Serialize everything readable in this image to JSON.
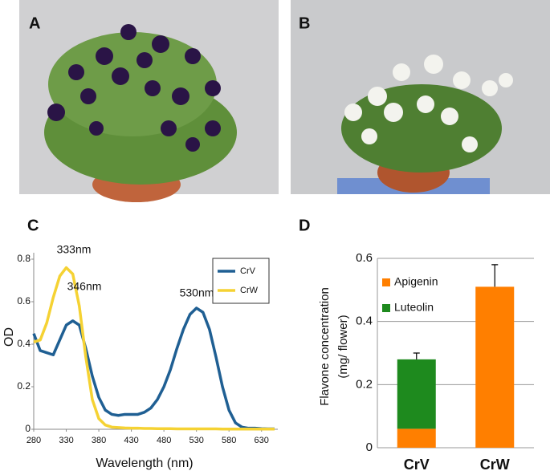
{
  "panel_labels": [
    "A",
    "B",
    "C",
    "D"
  ],
  "chart_data": [
    {
      "type": "line",
      "xlabel": "Wavelength (nm)",
      "ylabel": "OD",
      "x": [
        280,
        290,
        300,
        310,
        320,
        330,
        340,
        350,
        360,
        370,
        380,
        390,
        400,
        410,
        420,
        430,
        440,
        450,
        460,
        470,
        480,
        490,
        500,
        510,
        520,
        530,
        540,
        550,
        560,
        570,
        580,
        590,
        600,
        610,
        620,
        630,
        640,
        650
      ],
      "series": [
        {
          "name": "CrV",
          "color": "#1f5f93",
          "values": [
            0.45,
            0.37,
            0.36,
            0.35,
            0.42,
            0.49,
            0.51,
            0.49,
            0.38,
            0.25,
            0.15,
            0.09,
            0.07,
            0.065,
            0.07,
            0.07,
            0.07,
            0.08,
            0.1,
            0.14,
            0.2,
            0.28,
            0.38,
            0.47,
            0.54,
            0.57,
            0.55,
            0.47,
            0.34,
            0.2,
            0.09,
            0.03,
            0.01,
            0.005,
            0.005,
            0.003,
            0.002,
            0.002
          ]
        },
        {
          "name": "CrW",
          "color": "#f5d233",
          "values": [
            0.41,
            0.42,
            0.5,
            0.62,
            0.72,
            0.76,
            0.73,
            0.58,
            0.34,
            0.14,
            0.05,
            0.02,
            0.01,
            0.008,
            0.006,
            0.005,
            0.005,
            0.004,
            0.004,
            0.003,
            0.003,
            0.003,
            0.002,
            0.002,
            0.002,
            0.002,
            0.002,
            0.002,
            0.002,
            0.001,
            0.001,
            0.001,
            0.001,
            0.001,
            0.001,
            0.001,
            0.001,
            0.001
          ]
        }
      ],
      "annotations": [
        "333nm",
        "346nm",
        "530nm"
      ],
      "xlim": [
        280,
        655
      ],
      "xticks": [
        280,
        330,
        380,
        430,
        480,
        530,
        580,
        630
      ],
      "ylim": [
        0,
        0.8
      ],
      "yticks": [
        0,
        0.2,
        0.4,
        0.6,
        0.8
      ],
      "legend": "upper right",
      "grid": false
    },
    {
      "type": "bar",
      "stacked": true,
      "ylabel": [
        "Flavone concentration",
        "(mg/ flower)"
      ],
      "categories": [
        "CrV",
        "CrW"
      ],
      "series": [
        {
          "name": "Apigenin",
          "color": "#ff7f00",
          "values": [
            0.06,
            0.51
          ],
          "errors": [
            null,
            0.07
          ]
        },
        {
          "name": "Luteolin",
          "color": "#1e8a1e",
          "values": [
            0.22,
            0
          ],
          "errors": [
            0.02,
            null
          ]
        }
      ],
      "ylim": [
        0,
        0.6
      ],
      "yticks": [
        0,
        0.2,
        0.4,
        0.6
      ],
      "legend": "upper left",
      "grid": true
    }
  ]
}
